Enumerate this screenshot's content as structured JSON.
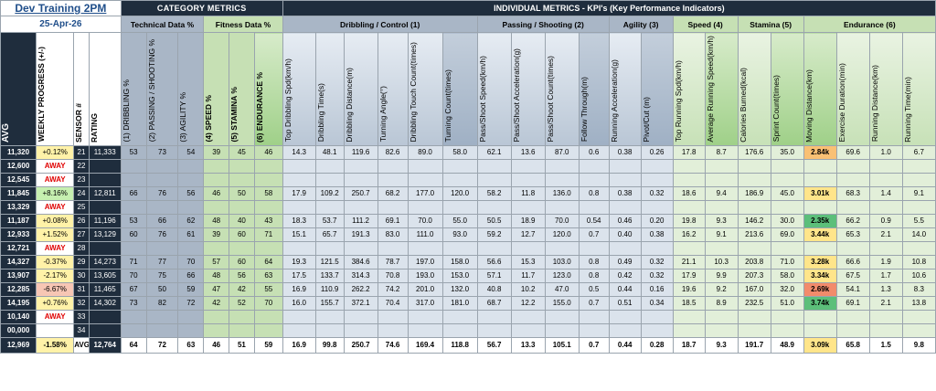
{
  "title": "Dev Training 2PM",
  "date": "25-Apr-26",
  "groups": {
    "category": "CATEGORY  METRICS",
    "individual": "INDIVIDUAL METRICS - KPI's (Key Performance Indicators)",
    "technical": "Technical Data %",
    "fitness": "Fitness Data %",
    "dribbling": "Dribbling / Control (1)",
    "passing": "Passing / Shooting (2)",
    "agility": "Agility (3)",
    "speed": "Speed (4)",
    "stamina": "Stamina (5)",
    "endurance": "Endurance (6)"
  },
  "headers": {
    "avg": "AVG",
    "progress": "WEEKLY PROGRESS (+/-)",
    "sensor": "SENSOR #",
    "rating": "RATING",
    "c1": "(1) DRIBBLING %",
    "c2": "(2) PASSING / SHOOTING %",
    "c3": "(3) AGILITY %",
    "c4": "(4) SPEED %",
    "c5": "(5) STAMINA %",
    "c6": "(6) ENDURANCE %",
    "k1": "Top Dribbling Spd(km/h)",
    "k2": "Dribbling Time(s)",
    "k3": "Dribbling Distance(m)",
    "k4": "Turning Angle(°)",
    "k5": "Dribbling Touch Count(times)",
    "k6": "Turning Count(times)",
    "k7": "Pass/Shoot Speed(km/h)",
    "k8": "Pass/Shoot Acceleration(g)",
    "k9": "Pass/Shoot Count(times)",
    "k10": "Follow Through(m)",
    "k11": "Running Acceleration(g)",
    "k12": "Pivot/Cut (m)",
    "k13": "Top Running Spd(km/h)",
    "k14": "Average Running Speed(km/h)",
    "k15": "Calories Burned(kcal)",
    "k16": "Sprint Count(times)",
    "k17": "Moving Distance(km)",
    "k18": "Exercise Duration(min)",
    "k19": "Running Distance(km)",
    "k20": "Running Time(min)"
  },
  "rows": [
    {
      "avg": "11,320",
      "prog": "+0.12%",
      "progtone": "pos",
      "sensor": "21",
      "rating": "11,333",
      "c": [
        "53",
        "73",
        "54",
        "39",
        "45",
        "46"
      ],
      "k": [
        "14.3",
        "48.1",
        "119.6",
        "82.6",
        "89.0",
        "58.0",
        "62.1",
        "13.6",
        "87.0",
        "0.6",
        "0.38",
        "0.26",
        "17.8",
        "8.7",
        "176.6",
        "35.0",
        "2.84k",
        "69.6",
        "1.0",
        "6.7"
      ],
      "mdtone": "hl-orange"
    },
    {
      "avg": "12,600",
      "prog": "AWAY",
      "progtone": "away",
      "sensor": "22",
      "rating": "",
      "c": [
        "",
        "",
        "",
        "",
        "",
        ""
      ],
      "k": [
        "",
        "",
        "",
        "",
        "",
        "",
        "",
        "",
        "",
        "",
        "",
        "",
        "",
        "",
        "",
        "",
        "",
        "",
        "",
        ""
      ],
      "mdtone": ""
    },
    {
      "avg": "12,545",
      "prog": "AWAY",
      "progtone": "away",
      "sensor": "23",
      "rating": "",
      "c": [
        "",
        "",
        "",
        "",
        "",
        ""
      ],
      "k": [
        "",
        "",
        "",
        "",
        "",
        "",
        "",
        "",
        "",
        "",
        "",
        "",
        "",
        "",
        "",
        "",
        "",
        "",
        "",
        ""
      ],
      "mdtone": ""
    },
    {
      "avg": "11,845",
      "prog": "+8.16%",
      "progtone": "posg",
      "sensor": "24",
      "rating": "12,811",
      "c": [
        "66",
        "76",
        "56",
        "46",
        "50",
        "58"
      ],
      "k": [
        "17.9",
        "109.2",
        "250.7",
        "68.2",
        "177.0",
        "120.0",
        "58.2",
        "11.8",
        "136.0",
        "0.8",
        "0.38",
        "0.32",
        "18.6",
        "9.4",
        "186.9",
        "45.0",
        "3.01k",
        "68.3",
        "1.4",
        "9.1"
      ],
      "mdtone": "hl-yellow"
    },
    {
      "avg": "13,329",
      "prog": "AWAY",
      "progtone": "away",
      "sensor": "25",
      "rating": "",
      "c": [
        "",
        "",
        "",
        "",
        "",
        ""
      ],
      "k": [
        "",
        "",
        "",
        "",
        "",
        "",
        "",
        "",
        "",
        "",
        "",
        "",
        "",
        "",
        "",
        "",
        "",
        "",
        "",
        ""
      ],
      "mdtone": ""
    },
    {
      "avg": "11,187",
      "prog": "+0.08%",
      "progtone": "pos",
      "sensor": "26",
      "rating": "11,196",
      "c": [
        "53",
        "66",
        "62",
        "48",
        "40",
        "43"
      ],
      "k": [
        "18.3",
        "53.7",
        "111.2",
        "69.1",
        "70.0",
        "55.0",
        "50.5",
        "18.9",
        "70.0",
        "0.54",
        "0.46",
        "0.20",
        "19.8",
        "9.3",
        "146.2",
        "30.0",
        "2.35k",
        "66.2",
        "0.9",
        "5.5"
      ],
      "mdtone": "hl-green"
    },
    {
      "avg": "12,933",
      "prog": "+1.52%",
      "progtone": "pos",
      "sensor": "27",
      "rating": "13,129",
      "c": [
        "60",
        "76",
        "61",
        "39",
        "60",
        "71"
      ],
      "k": [
        "15.1",
        "65.7",
        "191.3",
        "83.0",
        "111.0",
        "93.0",
        "59.2",
        "12.7",
        "120.0",
        "0.7",
        "0.40",
        "0.38",
        "16.2",
        "9.1",
        "213.6",
        "69.0",
        "3.44k",
        "65.3",
        "2.1",
        "14.0"
      ],
      "mdtone": "hl-yellow"
    },
    {
      "avg": "12,721",
      "prog": "AWAY",
      "progtone": "away",
      "sensor": "28",
      "rating": "",
      "c": [
        "",
        "",
        "",
        "",
        "",
        ""
      ],
      "k": [
        "",
        "",
        "",
        "",
        "",
        "",
        "",
        "",
        "",
        "",
        "",
        "",
        "",
        "",
        "",
        "",
        "",
        "",
        "",
        ""
      ],
      "mdtone": ""
    },
    {
      "avg": "14,327",
      "prog": "-0.37%",
      "progtone": "pos",
      "sensor": "29",
      "rating": "14,273",
      "c": [
        "71",
        "77",
        "70",
        "57",
        "60",
        "64"
      ],
      "k": [
        "19.3",
        "121.5",
        "384.6",
        "78.7",
        "197.0",
        "158.0",
        "56.6",
        "15.3",
        "103.0",
        "0.8",
        "0.49",
        "0.32",
        "21.1",
        "10.3",
        "203.8",
        "71.0",
        "3.28k",
        "66.6",
        "1.9",
        "10.8"
      ],
      "mdtone": "hl-yellow"
    },
    {
      "avg": "13,907",
      "prog": "-2.17%",
      "progtone": "pos",
      "sensor": "30",
      "rating": "13,605",
      "c": [
        "70",
        "75",
        "66",
        "48",
        "56",
        "63"
      ],
      "k": [
        "17.5",
        "133.7",
        "314.3",
        "70.8",
        "193.0",
        "153.0",
        "57.1",
        "11.7",
        "123.0",
        "0.8",
        "0.42",
        "0.32",
        "17.9",
        "9.9",
        "207.3",
        "58.0",
        "3.34k",
        "67.5",
        "1.7",
        "10.6"
      ],
      "mdtone": "hl-yellow"
    },
    {
      "avg": "12,285",
      "prog": "-6.67%",
      "progtone": "neg",
      "sensor": "31",
      "rating": "11,465",
      "c": [
        "67",
        "50",
        "59",
        "47",
        "42",
        "55"
      ],
      "k": [
        "16.9",
        "110.9",
        "262.2",
        "74.2",
        "201.0",
        "132.0",
        "40.8",
        "10.2",
        "47.0",
        "0.5",
        "0.44",
        "0.16",
        "19.6",
        "9.2",
        "167.0",
        "32.0",
        "2.69k",
        "54.1",
        "1.3",
        "8.3"
      ],
      "mdtone": "hl-red"
    },
    {
      "avg": "14,195",
      "prog": "+0.76%",
      "progtone": "pos",
      "sensor": "32",
      "rating": "14,302",
      "c": [
        "73",
        "82",
        "72",
        "42",
        "52",
        "70"
      ],
      "k": [
        "16.0",
        "155.7",
        "372.1",
        "70.4",
        "317.0",
        "181.0",
        "68.7",
        "12.2",
        "155.0",
        "0.7",
        "0.51",
        "0.34",
        "18.5",
        "8.9",
        "232.5",
        "51.0",
        "3.74k",
        "69.1",
        "2.1",
        "13.8"
      ],
      "mdtone": "hl-green"
    },
    {
      "avg": "10,140",
      "prog": "AWAY",
      "progtone": "away",
      "sensor": "33",
      "rating": "",
      "c": [
        "",
        "",
        "",
        "",
        "",
        ""
      ],
      "k": [
        "",
        "",
        "",
        "",
        "",
        "",
        "",
        "",
        "",
        "",
        "",
        "",
        "",
        "",
        "",
        "",
        "",
        "",
        "",
        ""
      ],
      "mdtone": ""
    },
    {
      "avg": "00,000",
      "prog": "",
      "progtone": "blank",
      "sensor": "34",
      "rating": "",
      "c": [
        "",
        "",
        "",
        "",
        "",
        ""
      ],
      "k": [
        "",
        "",
        "",
        "",
        "",
        "",
        "",
        "",
        "",
        "",
        "",
        "",
        "",
        "",
        "",
        "",
        "",
        "",
        "",
        ""
      ],
      "mdtone": ""
    }
  ],
  "avg": {
    "avg": "12,969",
    "prog": "-1.58%",
    "sensor": "AVG",
    "rating": "12,764",
    "c": [
      "64",
      "72",
      "63",
      "46",
      "51",
      "59"
    ],
    "k": [
      "16.9",
      "99.8",
      "250.7",
      "74.6",
      "169.4",
      "118.8",
      "56.7",
      "13.3",
      "105.1",
      "0.7",
      "0.44",
      "0.28",
      "18.7",
      "9.3",
      "191.7",
      "48.9",
      "3.09k",
      "65.8",
      "1.5",
      "9.8"
    ]
  }
}
